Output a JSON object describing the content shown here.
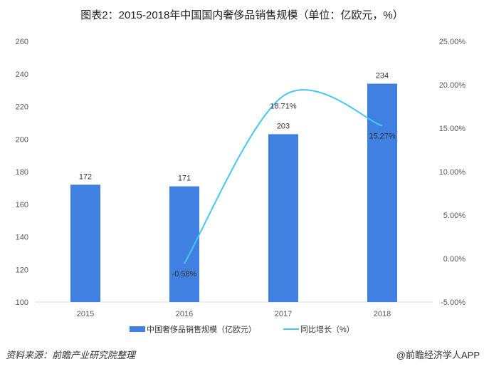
{
  "chart_data": {
    "type": "bar",
    "title": "图表2：2015-2018年中国国内奢侈品销售规模（单位：亿欧元，%）",
    "categories": [
      "2015",
      "2016",
      "2017",
      "2018"
    ],
    "series": [
      {
        "name": "中国奢侈品销售规模（亿欧元）",
        "type": "bar",
        "axis": "left",
        "color": "#3f80e0",
        "values": [
          172,
          171,
          203,
          234
        ],
        "labels": [
          "172",
          "171",
          "203",
          "234"
        ]
      },
      {
        "name": "同比增长（%）",
        "type": "line",
        "axis": "right",
        "color": "#45c8f5",
        "values": [
          null,
          -0.58,
          18.71,
          15.27
        ],
        "labels": [
          "",
          "-0.58%",
          "18.71%",
          "15.27%"
        ]
      }
    ],
    "left_axis": {
      "min": 100,
      "max": 260,
      "ticks": [
        "100",
        "120",
        "140",
        "160",
        "180",
        "200",
        "220",
        "240",
        "260"
      ]
    },
    "right_axis": {
      "min": -5,
      "max": 25,
      "ticks": [
        "-5.00%",
        "0.00%",
        "5.00%",
        "10.00%",
        "15.00%",
        "20.00%",
        "25.00%"
      ]
    },
    "legend_position": "bottom",
    "grid": false
  },
  "footer": {
    "source": "资料来源：前瞻产业研究院整理",
    "brand": "@前瞻经济学人APP"
  }
}
